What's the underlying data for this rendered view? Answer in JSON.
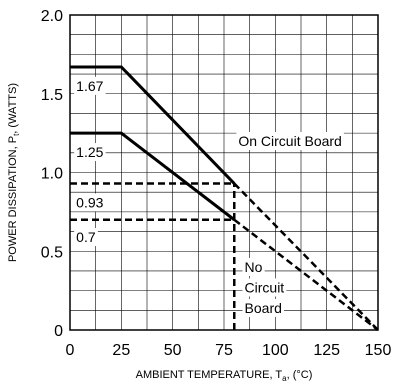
{
  "chart_data": {
    "type": "line",
    "xlabel_main": "AMBIENT TEMPERATURE, T",
    "xlabel_sub": "a",
    "xlabel_unit": ", (°C)",
    "ylabel_main": "POWER DISSIPATION, P",
    "ylabel_sub": "t",
    "ylabel_unit": ", (WATTS)",
    "xlim": [
      0,
      150
    ],
    "ylim": [
      0,
      2.0
    ],
    "x_ticks": [
      0,
      25,
      50,
      75,
      100,
      125,
      150
    ],
    "x_tick_labels": [
      "0",
      "25",
      "50",
      "75",
      "100",
      "125",
      "150"
    ],
    "y_ticks": [
      0,
      0.5,
      1.0,
      1.5,
      2.0
    ],
    "y_tick_labels": [
      "0",
      "0.5",
      "1.0",
      "1.5",
      "2.0"
    ],
    "grid": true,
    "series": [
      {
        "name": "On Circuit Board",
        "style": "solid",
        "values": [
          [
            0,
            1.67
          ],
          [
            25,
            1.67
          ],
          [
            80,
            0.93
          ]
        ],
        "extension": {
          "style": "dashed",
          "values": [
            [
              80,
              0.93
            ],
            [
              150,
              0
            ]
          ]
        }
      },
      {
        "name": "No Circuit Board",
        "style": "solid",
        "values": [
          [
            0,
            1.25
          ],
          [
            25,
            1.25
          ],
          [
            80,
            0.7
          ]
        ],
        "extension": {
          "style": "dashed",
          "values": [
            [
              80,
              0.7
            ],
            [
              150,
              0
            ]
          ]
        }
      }
    ],
    "reference_lines": [
      {
        "style": "dashed",
        "values": [
          [
            0,
            0.93
          ],
          [
            80,
            0.93
          ]
        ]
      },
      {
        "style": "dashed",
        "values": [
          [
            0,
            0.7
          ],
          [
            80,
            0.7
          ]
        ]
      },
      {
        "style": "dashed",
        "values": [
          [
            80,
            0
          ],
          [
            80,
            0.93
          ]
        ]
      }
    ],
    "annotations": [
      {
        "text": "1.67",
        "x": 3,
        "y": 1.55
      },
      {
        "text": "1.25",
        "x": 3,
        "y": 1.13
      },
      {
        "text": "0.93",
        "x": 3,
        "y": 0.81
      },
      {
        "text": "0.7",
        "x": 3,
        "y": 0.59
      },
      {
        "text": "On Circuit Board",
        "x": 82,
        "y": 1.2
      },
      {
        "text": "No",
        "x": 85,
        "y": 0.4
      },
      {
        "text": "Circuit",
        "x": 85,
        "y": 0.27
      },
      {
        "text": "Board",
        "x": 85,
        "y": 0.14
      }
    ]
  }
}
